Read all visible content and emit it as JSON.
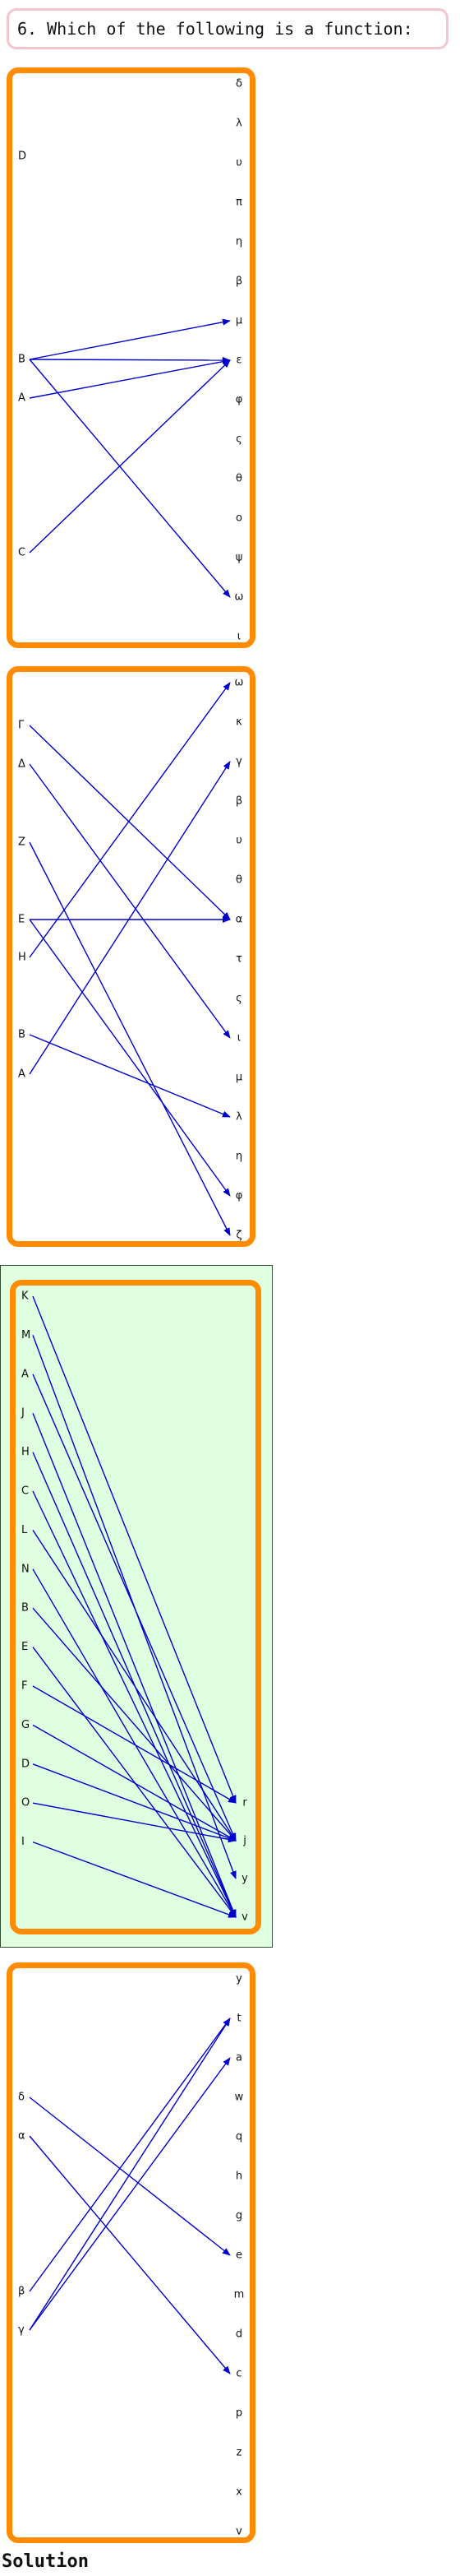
{
  "question": "6. Which of the following is a function:",
  "solution_label": "Solution",
  "colors": {
    "panel_border": "#ff8c00",
    "arrow": "#0000cc",
    "highlight_fill": "#e0ffe0",
    "question_border": "#f5c6cb"
  },
  "options": [
    {
      "domain": [
        "D",
        "B",
        "A",
        "C"
      ],
      "codomain": [
        "δ",
        "λ",
        "υ",
        "π",
        "η",
        "β",
        "μ",
        "ε",
        "φ",
        "ς",
        "θ",
        "ο",
        "ψ",
        "ω",
        "ι"
      ],
      "mappings": [
        [
          "B",
          "μ"
        ],
        [
          "B",
          "ε"
        ],
        [
          "B",
          "ω"
        ],
        [
          "A",
          "ε"
        ],
        [
          "C",
          "ε"
        ]
      ],
      "highlighted": false
    },
    {
      "domain": [
        "Γ",
        "Δ",
        "Z",
        "E",
        "H",
        "B",
        "A"
      ],
      "codomain": [
        "ω",
        "κ",
        "γ",
        "β",
        "υ",
        "θ",
        "α",
        "τ",
        "ς",
        "ι",
        "μ",
        "λ",
        "η",
        "φ",
        "ζ"
      ],
      "mappings": [
        [
          "Γ",
          "α"
        ],
        [
          "Δ",
          "ι"
        ],
        [
          "Z",
          "ζ"
        ],
        [
          "E",
          "α"
        ],
        [
          "E",
          "φ"
        ],
        [
          "H",
          "ω"
        ],
        [
          "B",
          "λ"
        ],
        [
          "A",
          "γ"
        ]
      ],
      "highlighted": false
    },
    {
      "domain": [
        "K",
        "M",
        "A",
        "J",
        "H",
        "C",
        "L",
        "N",
        "B",
        "E",
        "F",
        "G",
        "D",
        "O",
        "I"
      ],
      "codomain": [
        "r",
        "j",
        "y",
        "v"
      ],
      "mappings": [
        [
          "K",
          "r"
        ],
        [
          "M",
          "y"
        ],
        [
          "A",
          "j"
        ],
        [
          "J",
          "v"
        ],
        [
          "H",
          "v"
        ],
        [
          "C",
          "v"
        ],
        [
          "L",
          "j"
        ],
        [
          "N",
          "v"
        ],
        [
          "B",
          "j"
        ],
        [
          "E",
          "v"
        ],
        [
          "F",
          "r"
        ],
        [
          "G",
          "j"
        ],
        [
          "D",
          "j"
        ],
        [
          "O",
          "j"
        ],
        [
          "I",
          "v"
        ]
      ],
      "highlighted": true
    },
    {
      "domain": [
        "δ",
        "α",
        "β",
        "γ"
      ],
      "codomain": [
        "y",
        "t",
        "a",
        "w",
        "q",
        "h",
        "g",
        "e",
        "m",
        "d",
        "c",
        "p",
        "z",
        "x",
        "v"
      ],
      "mappings": [
        [
          "δ",
          "e"
        ],
        [
          "α",
          "c"
        ],
        [
          "β",
          "t"
        ],
        [
          "γ",
          "t"
        ],
        [
          "γ",
          "a"
        ]
      ],
      "highlighted": false
    }
  ]
}
